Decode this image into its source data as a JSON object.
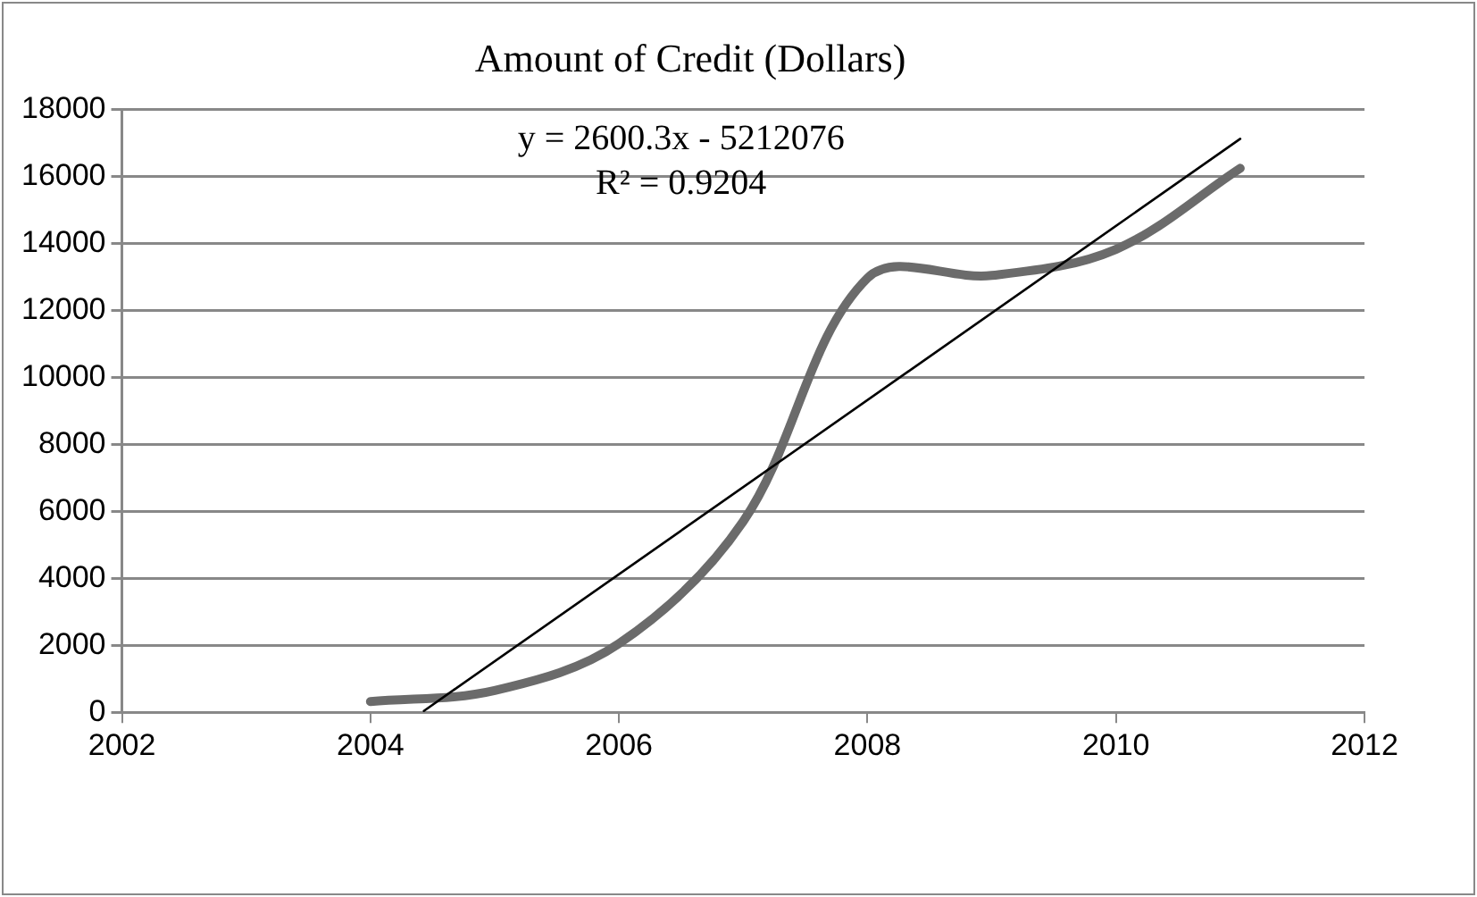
{
  "chart_data": {
    "type": "line",
    "title": "Amount of Credit (Dollars)",
    "x": [
      2004,
      2005,
      2006,
      2007,
      2008,
      2009,
      2010,
      2011
    ],
    "series": [
      {
        "color": "#6b6b6b",
        "values": [
          320,
          650,
          2050,
          5700,
          12970,
          13050,
          13830,
          16250
        ]
      },
      {
        "color": "#000000",
        "x": [
          2004.43,
          2011
        ],
        "values": [
          40,
          17130
        ]
      }
    ],
    "annotations": [
      "y = 2600.3x - 5212076",
      "R² = 0.9204"
    ],
    "xlim": [
      2002,
      2012
    ],
    "xticks": [
      2002,
      2004,
      2006,
      2008,
      2010,
      2012
    ],
    "ylim": [
      0,
      18000
    ],
    "yticks": [
      0,
      2000,
      4000,
      6000,
      8000,
      10000,
      12000,
      14000,
      16000,
      18000
    ],
    "grid": "y",
    "legend": false,
    "marker": "none"
  }
}
